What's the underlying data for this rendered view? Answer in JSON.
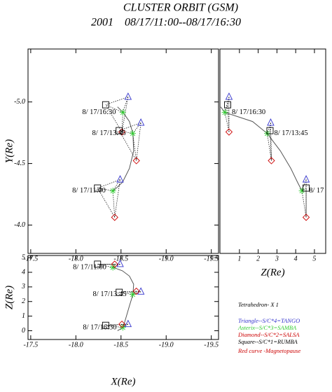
{
  "title": "CLUSTER ORBIT (GSM)",
  "subtitle": "2001    08/17/11:00--08/17/16:30",
  "legend": {
    "title": "Tetrahedron- X  1",
    "note": "Red curve -Magnetopause",
    "note_color": "#cc0000"
  },
  "chart_data": [
    {
      "type": "scatter",
      "x_label": null,
      "y_label": "Y(Re)",
      "xlim": [
        -17.47,
        -19.58
      ],
      "ylim": [
        -3.77,
        -5.43
      ],
      "xticks": [
        -17.5,
        {
          "value": -18,
          "label": "-18.0"
        },
        -18.5,
        {
          "value": -19,
          "label": "-19.0"
        },
        -19.5
      ],
      "yticks": [
        {
          "value": -5,
          "label": "-5.0"
        },
        -4.5,
        {
          "value": -4,
          "label": "-4.0"
        }
      ],
      "annotations": [
        "8/ 17/16:30",
        "8/ 17/13:45",
        "8/ 17/11:00"
      ],
      "curve": {
        "color": "#555555",
        "x": [
          -18.461,
          -18.523,
          -18.593,
          -18.632,
          -18.64,
          -18.593,
          -18.516,
          -18.415
        ],
        "y": [
          -4.96,
          -4.915,
          -4.841,
          -4.744,
          -4.602,
          -4.46,
          -4.347,
          -4.278
        ]
      },
      "series": [
        {
          "name": "Triangle--S/C*4=TANGO",
          "color": "#3333cc",
          "x": [
            -18.578,
            -18.72,
            -18.49
          ],
          "y": [
            -5.04,
            -4.83,
            -4.369
          ]
        },
        {
          "name": "Asterix--S/C*3=SAMBA",
          "color": "#33cc33",
          "x": [
            -18.52,
            -18.63,
            -18.41
          ],
          "y": [
            -4.915,
            -4.744,
            -4.278
          ]
        },
        {
          "name": "Diamond--S/C*2=SALSA",
          "color": "#cc0000",
          "x": [
            -18.51,
            -18.67,
            -18.43
          ],
          "y": [
            -4.756,
            -4.523,
            -4.063
          ]
        },
        {
          "name": "Square--S/C*1=RUMBA",
          "color": "#000000",
          "x": [
            -18.33,
            -18.48,
            -18.24
          ],
          "y": [
            -4.977,
            -4.767,
            -4.301
          ]
        }
      ]
    },
    {
      "type": "scatter",
      "x_label": "Z(Re)",
      "y_label": null,
      "xlim": [
        -0.04,
        5.6
      ],
      "ylim": [
        -3.77,
        -5.43
      ],
      "xticks": [
        1,
        2,
        3,
        4,
        5
      ],
      "yticks": [],
      "annotations": [
        "8/ 17/16:30",
        "8/ 17/13:45",
        "8/ 17"
      ],
      "curve": {
        "color": "#555555",
        "x": [
          0.0,
          0.222,
          1.7,
          2.481,
          3.185,
          3.741,
          4.1,
          4.333
        ],
        "y": [
          -4.96,
          -4.915,
          -4.841,
          -4.744,
          -4.602,
          -4.46,
          -4.347,
          -4.278
        ]
      },
      "series": [
        {
          "name": "Triangle--S/C*4=TANGO",
          "color": "#3333cc",
          "x": [
            0.444,
            2.667,
            4.556
          ],
          "y": [
            -5.04,
            -4.83,
            -4.369
          ]
        },
        {
          "name": "Asterix--S/C*3=SAMBA",
          "color": "#33cc33",
          "x": [
            0.222,
            2.481,
            4.333
          ],
          "y": [
            -4.915,
            -4.744,
            -4.278
          ]
        },
        {
          "name": "Diamond--S/C*2=SALSA",
          "color": "#cc0000",
          "x": [
            0.444,
            2.704,
            4.556
          ],
          "y": [
            -4.756,
            -4.523,
            -4.063
          ]
        },
        {
          "name": "Square--S/C*1=RUMBA",
          "color": "#000000",
          "x": [
            0.37,
            2.63,
            4.556
          ],
          "y": [
            -4.977,
            -4.767,
            -4.301
          ]
        }
      ]
    },
    {
      "type": "scatter",
      "x_label": "X(Re)",
      "y_label": "Z(Re)",
      "xlim": [
        -17.47,
        -19.58
      ],
      "ylim": [
        -0.6,
        5.15
      ],
      "xticks": [
        -17.5,
        {
          "value": -18,
          "label": "-18.0"
        },
        -18.5,
        {
          "value": -19,
          "label": "-19.0"
        },
        -19.5
      ],
      "yticks": [
        0,
        1,
        2,
        3,
        4,
        5
      ],
      "annotations": [
        "8/ 17/16:30",
        "8/ 17/13:45",
        "8/ 17/11:00"
      ],
      "curve": {
        "color": "#555555",
        "x": [
          -18.461,
          -18.523,
          -18.593,
          -18.632,
          -18.64,
          -18.593,
          -18.516,
          -18.415
        ],
        "y": [
          0.0,
          0.222,
          1.7,
          2.481,
          3.185,
          3.741,
          4.1,
          4.333
        ]
      },
      "series": [
        {
          "name": "Triangle--S/C*4=TANGO",
          "color": "#3333cc",
          "x": [
            -18.578,
            -18.72,
            -18.49
          ],
          "y": [
            0.444,
            2.667,
            4.556
          ]
        },
        {
          "name": "Asterix--S/C*3=SAMBA",
          "color": "#33cc33",
          "x": [
            -18.52,
            -18.63,
            -18.41
          ],
          "y": [
            0.222,
            2.481,
            4.333
          ]
        },
        {
          "name": "Diamond--S/C*2=SALSA",
          "color": "#cc0000",
          "x": [
            -18.51,
            -18.67,
            -18.43
          ],
          "y": [
            0.444,
            2.704,
            4.556
          ]
        },
        {
          "name": "Square--S/C*1=RUMBA",
          "color": "#000000",
          "x": [
            -18.33,
            -18.48,
            -18.24
          ],
          "y": [
            0.37,
            2.63,
            4.556
          ]
        }
      ]
    }
  ]
}
